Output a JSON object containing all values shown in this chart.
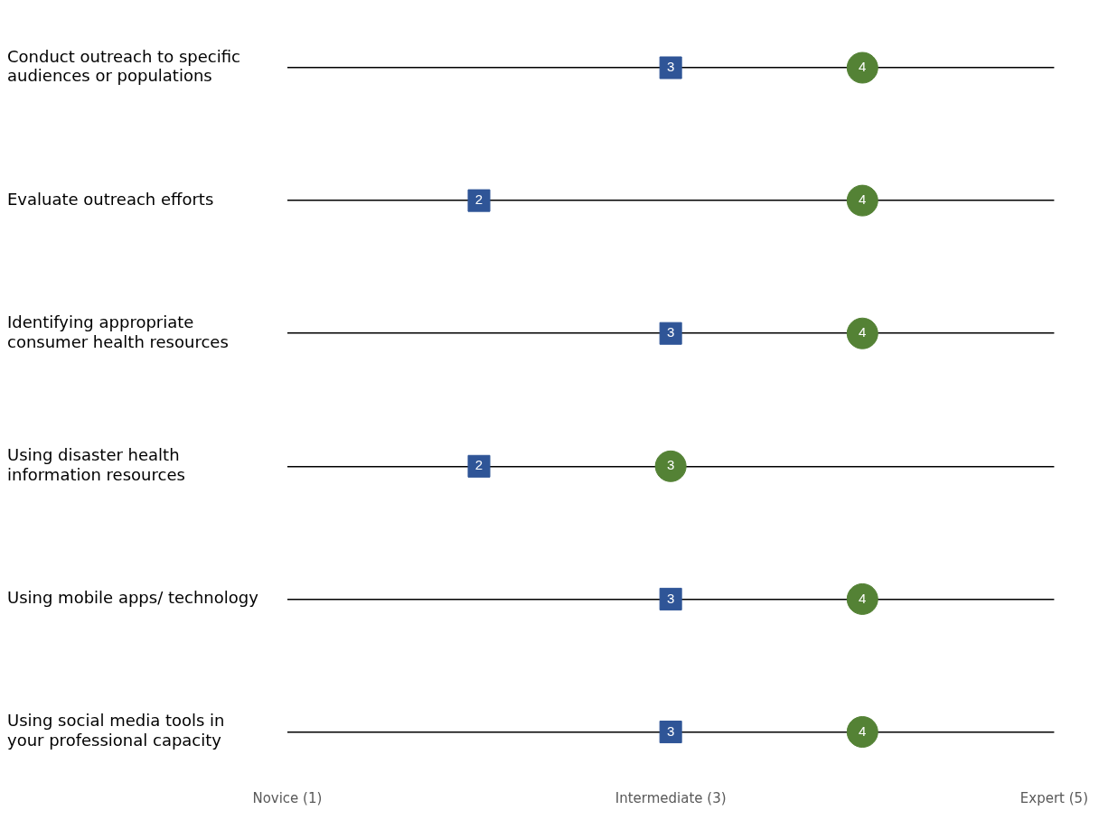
{
  "chart_data": {
    "type": "scatter",
    "orientation": "horizontal",
    "categories": [
      "Conduct outreach to specific audiences or populations",
      "Evaluate outreach efforts",
      "Identifying appropriate consumer health resources",
      "Using disaster health information resources",
      "Using mobile apps/ technology",
      "Using social media tools in your professional capacity"
    ],
    "series": [
      {
        "color": "#2f5597",
        "marker": "square",
        "values": [
          3,
          2,
          3,
          2,
          3,
          3
        ]
      },
      {
        "color": "#548235",
        "marker": "circle",
        "values": [
          4,
          4,
          4,
          3,
          4,
          4
        ]
      }
    ],
    "xlim": [
      1,
      5
    ],
    "xticks": [
      {
        "value": 1,
        "label": "Novice (1)"
      },
      {
        "value": 3,
        "label": "Intermediate (3)"
      },
      {
        "value": 5,
        "label": "Expert (5)"
      }
    ],
    "grid": "y",
    "legend": false,
    "data_labels": true
  }
}
